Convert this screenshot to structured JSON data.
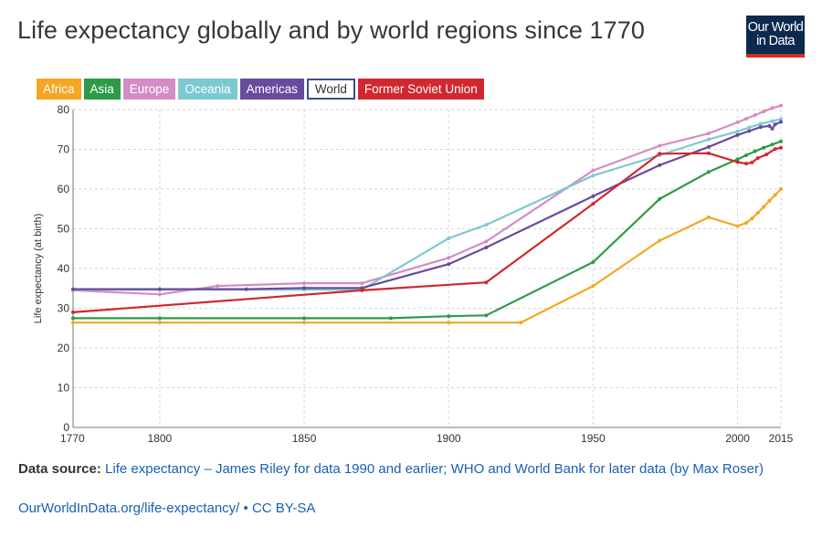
{
  "title": "Life expectancy globally and by world regions since 1770",
  "logo": {
    "line1": "Our World",
    "line2": "in Data"
  },
  "legend": [
    {
      "label": "Africa",
      "color": "#f5a623",
      "style": "filled"
    },
    {
      "label": "Asia",
      "color": "#2e9a48",
      "style": "filled"
    },
    {
      "label": "Europe",
      "color": "#d48cc4",
      "style": "filled"
    },
    {
      "label": "Oceania",
      "color": "#7cc9d1",
      "style": "filled"
    },
    {
      "label": "Americas",
      "color": "#6a4a9c",
      "style": "filled"
    },
    {
      "label": "World",
      "color": "#3c4e8c",
      "style": "outline"
    },
    {
      "label": "Former Soviet Union",
      "color": "#d0282e",
      "style": "filled"
    }
  ],
  "source": {
    "label": "Data source:",
    "text": "Life expectancy – James Riley for data 1990 and earlier; WHO and World Bank for later data (by Max Roser)"
  },
  "footer": {
    "url": "OurWorldInData.org/life-expectancy/",
    "sep": " • ",
    "license": "CC BY-SA"
  },
  "chart_data": {
    "type": "line",
    "title": "Life expectancy globally and by world regions since 1770",
    "xlabel": "",
    "ylabel": "Life expectancy (at birth)",
    "xlim": [
      1770,
      2015
    ],
    "ylim": [
      0,
      80
    ],
    "x_ticks": [
      "1770",
      "1800",
      "1850",
      "1900",
      "1950",
      "2000",
      "2015"
    ],
    "y_ticks": [
      "0",
      "10",
      "20",
      "30",
      "40",
      "50",
      "60",
      "70",
      "80"
    ],
    "grid": true,
    "legend_position": "top-left",
    "series": [
      {
        "name": "Africa",
        "color": "#f5a623",
        "points": [
          [
            1770,
            26.4
          ],
          [
            1800,
            26.4
          ],
          [
            1850,
            26.4
          ],
          [
            1900,
            26.4
          ],
          [
            1925,
            26.4
          ],
          [
            1950,
            35.6
          ],
          [
            1973,
            47
          ],
          [
            1990,
            52.9
          ],
          [
            2000,
            50.7
          ],
          [
            2003,
            51.5
          ],
          [
            2005,
            52.6
          ],
          [
            2007,
            54
          ],
          [
            2009,
            55.5
          ],
          [
            2011,
            57
          ],
          [
            2013,
            58.5
          ],
          [
            2015,
            60
          ]
        ]
      },
      {
        "name": "Asia",
        "color": "#2e9a48",
        "points": [
          [
            1770,
            27.5
          ],
          [
            1800,
            27.5
          ],
          [
            1850,
            27.5
          ],
          [
            1880,
            27.5
          ],
          [
            1900,
            28
          ],
          [
            1913,
            28.2
          ],
          [
            1950,
            41.6
          ],
          [
            1973,
            57.5
          ],
          [
            1990,
            64.3
          ],
          [
            2000,
            67.5
          ],
          [
            2003,
            68.5
          ],
          [
            2006,
            69.5
          ],
          [
            2009,
            70.4
          ],
          [
            2012,
            71.2
          ],
          [
            2015,
            72
          ]
        ]
      },
      {
        "name": "Europe",
        "color": "#d48cc4",
        "points": [
          [
            1770,
            34.5
          ],
          [
            1800,
            33.5
          ],
          [
            1820,
            35.6
          ],
          [
            1850,
            36.3
          ],
          [
            1870,
            36.3
          ],
          [
            1900,
            42.7
          ],
          [
            1913,
            46.8
          ],
          [
            1950,
            64.7
          ],
          [
            1973,
            70.9
          ],
          [
            1990,
            74
          ],
          [
            2000,
            76.8
          ],
          [
            2003,
            77.7
          ],
          [
            2006,
            78.6
          ],
          [
            2009,
            79.5
          ],
          [
            2012,
            80.4
          ],
          [
            2015,
            81
          ]
        ]
      },
      {
        "name": "Oceania",
        "color": "#7cc9d1",
        "points": [
          [
            1770,
            34.7
          ],
          [
            1800,
            34.7
          ],
          [
            1850,
            34.7
          ],
          [
            1870,
            34.7
          ],
          [
            1900,
            47.6
          ],
          [
            1913,
            51
          ],
          [
            1950,
            63.4
          ],
          [
            1973,
            68.5
          ],
          [
            1990,
            72.5
          ],
          [
            2000,
            74.5
          ],
          [
            2004,
            75.5
          ],
          [
            2008,
            76.4
          ],
          [
            2012,
            77.1
          ],
          [
            2015,
            77.6
          ]
        ]
      },
      {
        "name": "Americas",
        "color": "#6a4a9c",
        "points": [
          [
            1770,
            34.8
          ],
          [
            1800,
            34.8
          ],
          [
            1830,
            34.8
          ],
          [
            1850,
            35.1
          ],
          [
            1870,
            35.1
          ],
          [
            1900,
            41.1
          ],
          [
            1913,
            45.3
          ],
          [
            1950,
            58.2
          ],
          [
            1973,
            66
          ],
          [
            1990,
            70.6
          ],
          [
            2000,
            73.6
          ],
          [
            2004,
            74.6
          ],
          [
            2008,
            75.6
          ],
          [
            2011,
            75.9
          ],
          [
            2012,
            75.2
          ],
          [
            2013,
            76.3
          ],
          [
            2015,
            76.9
          ]
        ]
      },
      {
        "name": "Former Soviet Union",
        "color": "#d0282e",
        "points": [
          [
            1770,
            29
          ],
          [
            1870,
            34.5
          ],
          [
            1913,
            36.5
          ],
          [
            1950,
            56.3
          ],
          [
            1973,
            68.9
          ],
          [
            1990,
            69
          ],
          [
            2000,
            66.8
          ],
          [
            2003,
            66.4
          ],
          [
            2005,
            66.7
          ],
          [
            2007,
            67.8
          ],
          [
            2010,
            68.7
          ],
          [
            2013,
            70.1
          ],
          [
            2015,
            70.4
          ]
        ]
      }
    ]
  }
}
